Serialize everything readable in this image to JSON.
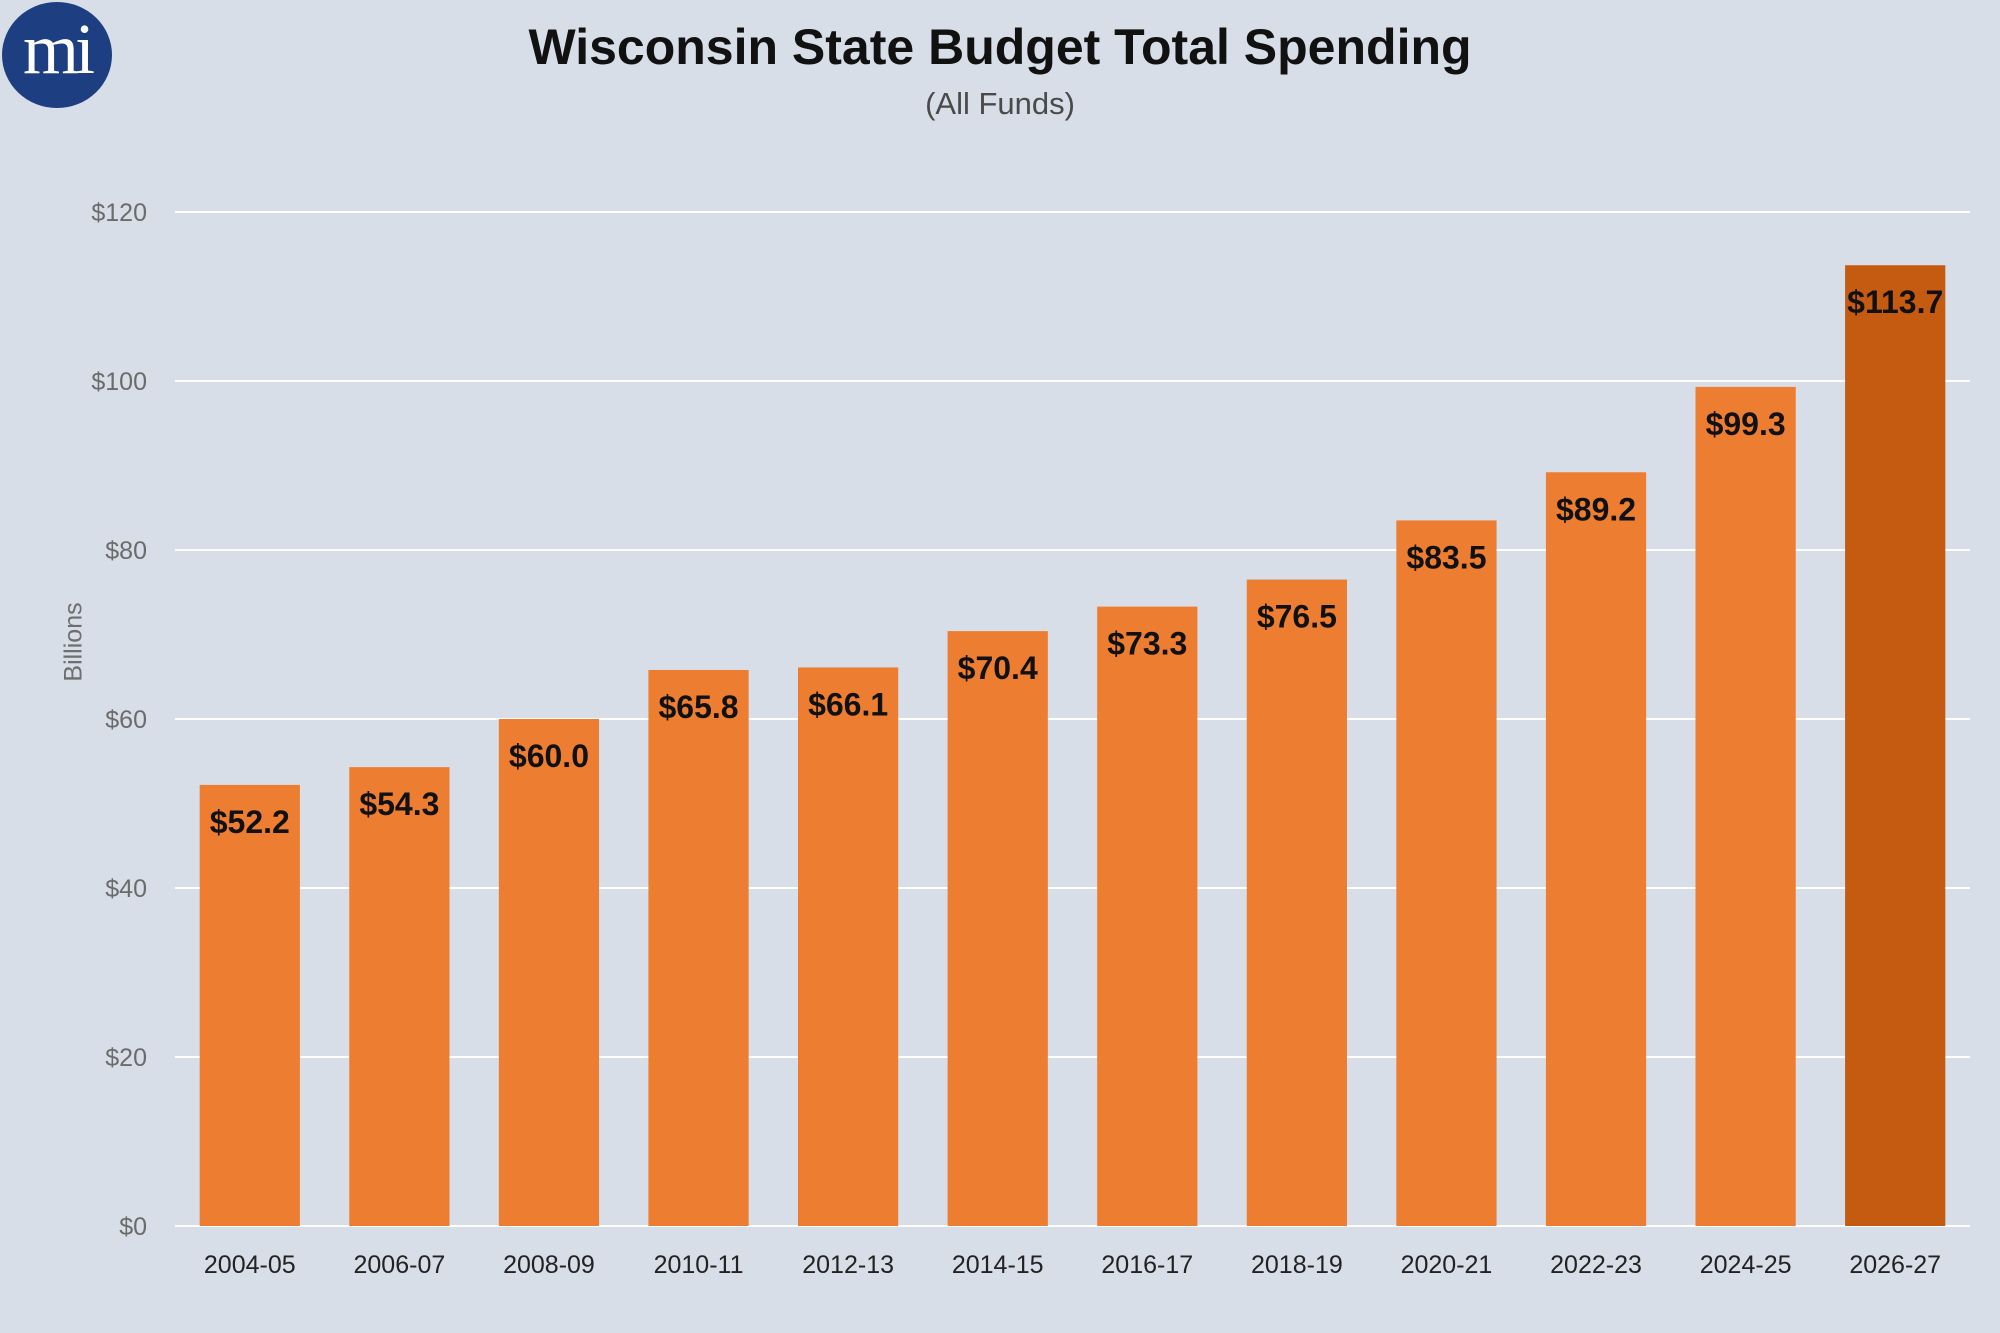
{
  "logo": {
    "text": "mi",
    "color": "#1d3f82"
  },
  "chart_data": {
    "type": "bar",
    "title": "Wisconsin State Budget Total Spending",
    "subtitle": "(All Funds)",
    "ylabel": "Billions",
    "xlabel": "",
    "ylim": [
      0,
      120
    ],
    "yticks": [
      0,
      20,
      40,
      60,
      80,
      100,
      120
    ],
    "ytick_labels": [
      "$0",
      "$20",
      "$40",
      "$60",
      "$80",
      "$100",
      "$120"
    ],
    "grid": true,
    "categories": [
      "2004-05",
      "2006-07",
      "2008-09",
      "2010-11",
      "2012-13",
      "2014-15",
      "2016-17",
      "2018-19",
      "2020-21",
      "2022-23",
      "2024-25",
      "2026-27"
    ],
    "values": [
      52.2,
      54.3,
      60.0,
      65.8,
      66.1,
      70.4,
      73.3,
      76.5,
      83.5,
      89.2,
      99.3,
      113.7
    ],
    "value_labels": [
      "$52.2",
      "$54.3",
      "$60.0",
      "$65.8",
      "$66.1",
      "$70.4",
      "$73.3",
      "$76.5",
      "$83.5",
      "$89.2",
      "$99.3",
      "$113.7"
    ],
    "colors": {
      "bar": "#ed7d31",
      "highlight": "#c55a11",
      "background": "#d7dee7",
      "grid": "#ffffff"
    },
    "highlight_index": 11
  }
}
